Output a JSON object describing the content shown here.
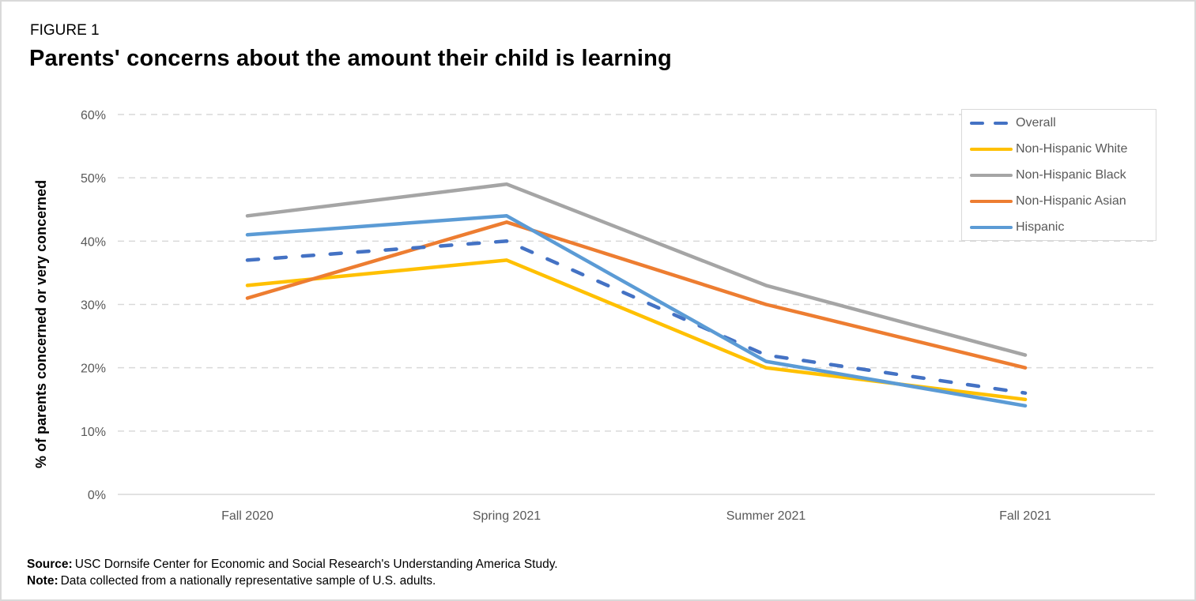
{
  "figure_label": "FIGURE 1",
  "title": "Parents' concerns about the amount their child is learning",
  "footer": {
    "source_label": "Source:",
    "source_text": "USC Dornsife Center for Economic and Social Research's Understanding America Study.",
    "note_label": "Note:",
    "note_text": "Data collected from a nationally  representative sample of U.S. adults."
  },
  "chart_data": {
    "type": "line",
    "title": "Parents' concerns about the amount their child is learning",
    "xlabel": "",
    "ylabel": "% of parents concerned or very concerned",
    "categories": [
      "Fall 2020",
      "Spring 2021",
      "Summer 2021",
      "Fall 2021"
    ],
    "ylim": [
      0,
      60
    ],
    "yticks": [
      0,
      10,
      20,
      30,
      40,
      50,
      60
    ],
    "ytick_labels": [
      "0%",
      "10%",
      "20%",
      "30%",
      "40%",
      "50%",
      "60%"
    ],
    "grid": "horizontal dashed",
    "legend_position": "top-right",
    "series": [
      {
        "name": "Overall",
        "values": [
          37,
          40,
          22,
          16
        ],
        "color": "#4472c4",
        "dashed": true
      },
      {
        "name": "Non-Hispanic White",
        "values": [
          33,
          37,
          20,
          15
        ],
        "color": "#ffc000",
        "dashed": false
      },
      {
        "name": "Non-Hispanic Black",
        "values": [
          44,
          49,
          33,
          22
        ],
        "color": "#a5a5a5",
        "dashed": false
      },
      {
        "name": "Non-Hispanic Asian",
        "values": [
          31,
          43,
          30,
          20
        ],
        "color": "#ed7d31",
        "dashed": false
      },
      {
        "name": "Hispanic",
        "values": [
          41,
          44,
          21,
          14
        ],
        "color": "#5b9bd5",
        "dashed": false
      }
    ]
  }
}
